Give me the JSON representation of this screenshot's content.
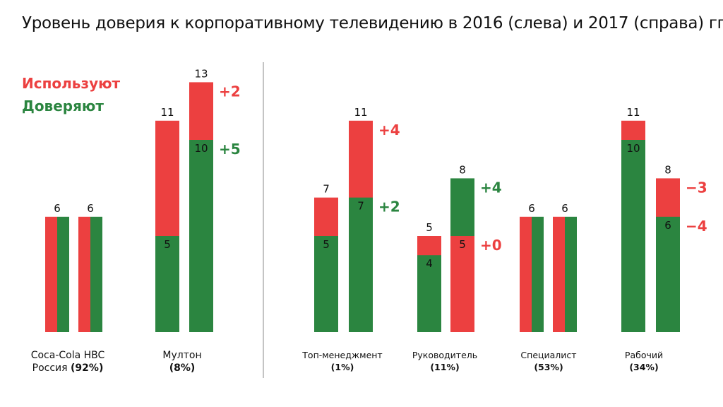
{
  "title": "Уровень доверия к корпоративному телевидению в 2016 (слева) и 2017 (справа) гг.",
  "legend": {
    "use_label": "Используют",
    "trust_label": "Доверяют"
  },
  "colors": {
    "use": "#ec4040",
    "trust": "#2b8540",
    "delta_negative": "#ec4040"
  },
  "chart_data": {
    "type": "bar",
    "title": "Уровень доверия к корпоративному телевидению в 2016 (слева) и 2017 (справа) гг.",
    "series": [
      {
        "name": "Используют"
      },
      {
        "name": "Доверяют"
      }
    ],
    "groups": [
      {
        "name": "Coca-Cola HBC",
        "name2": "Россия",
        "pct": "(92%)",
        "y2016": {
          "use": 6,
          "trust": 6
        },
        "y2017": {
          "use": 6,
          "trust": 6
        },
        "use_delta": "",
        "trust_delta": ""
      },
      {
        "name": "Мултон",
        "name2": "",
        "pct": "(8%)",
        "y2016": {
          "use": 11,
          "trust": 5
        },
        "y2017": {
          "use": 13,
          "trust": 10
        },
        "use_delta": "+2",
        "trust_delta": "+5"
      },
      {
        "name": "Топ-менеджмент",
        "name2": "",
        "pct": "(1%)",
        "y2016": {
          "use": 7,
          "trust": 5
        },
        "y2017": {
          "use": 11,
          "trust": 7
        },
        "use_delta": "+4",
        "trust_delta": "+2"
      },
      {
        "name": "Руководитель",
        "name2": "",
        "pct": "(11%)",
        "y2016": {
          "use": 5,
          "trust": 4
        },
        "y2017": {
          "use": 5,
          "trust": 8
        },
        "use_delta": "+0",
        "trust_delta": "+4"
      },
      {
        "name": "Специалист",
        "name2": "",
        "pct": "(53%)",
        "y2016": {
          "use": 6,
          "trust": 6
        },
        "y2017": {
          "use": 6,
          "trust": 6
        },
        "use_delta": "",
        "trust_delta": ""
      },
      {
        "name": "Рабочий",
        "name2": "",
        "pct": "(34%)",
        "y2016": {
          "use": 11,
          "trust": 10
        },
        "y2017": {
          "use": 8,
          "trust": 6
        },
        "use_delta": "−3",
        "trust_delta": "−4"
      }
    ],
    "ylim": [
      0,
      13
    ],
    "grid": false,
    "legend_position": "top-left"
  }
}
